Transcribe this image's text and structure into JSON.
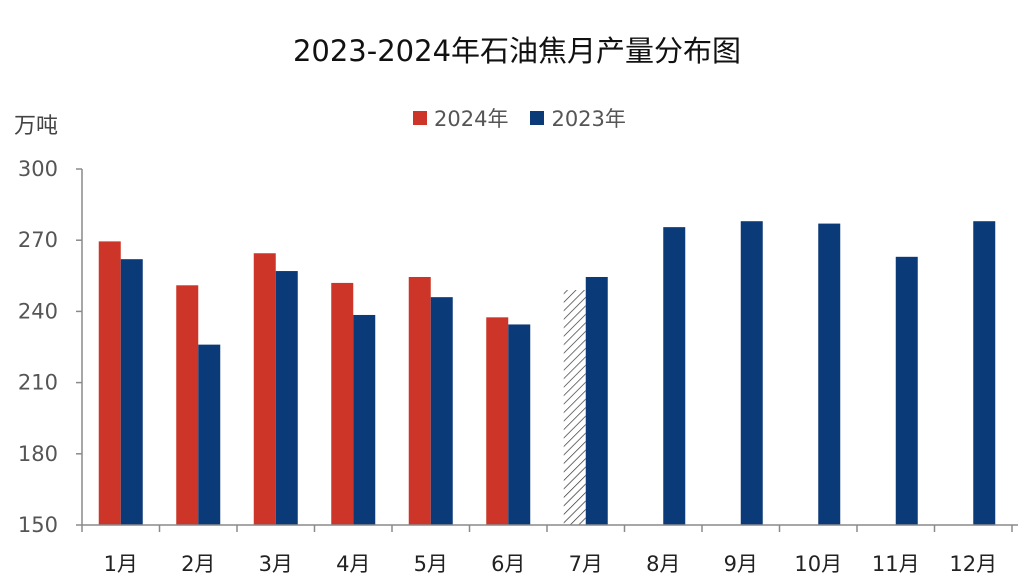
{
  "chart_data": {
    "type": "bar",
    "title": "2023-2024年石油焦月产量分布图",
    "ylabel": "万吨",
    "xlabel": "",
    "ylim": [
      150,
      300
    ],
    "yticks": [
      150,
      180,
      210,
      240,
      270,
      300
    ],
    "categories": [
      "1月",
      "2月",
      "3月",
      "4月",
      "5月",
      "6月",
      "7月",
      "8月",
      "9月",
      "10月",
      "11月",
      "12月"
    ],
    "series": [
      {
        "name": "2024年",
        "color": "#cc3527",
        "values": [
          269.5,
          251,
          264.5,
          252,
          254.5,
          237.5,
          249,
          null,
          null,
          null,
          null,
          null
        ],
        "hatched_estimate_index": 6
      },
      {
        "name": "2023年",
        "color": "#0b3a78",
        "values": [
          262,
          226,
          257,
          238.5,
          246,
          234.5,
          254.5,
          275.5,
          278,
          277,
          263,
          278
        ]
      }
    ],
    "grid": false,
    "legend_position": "top-center"
  }
}
